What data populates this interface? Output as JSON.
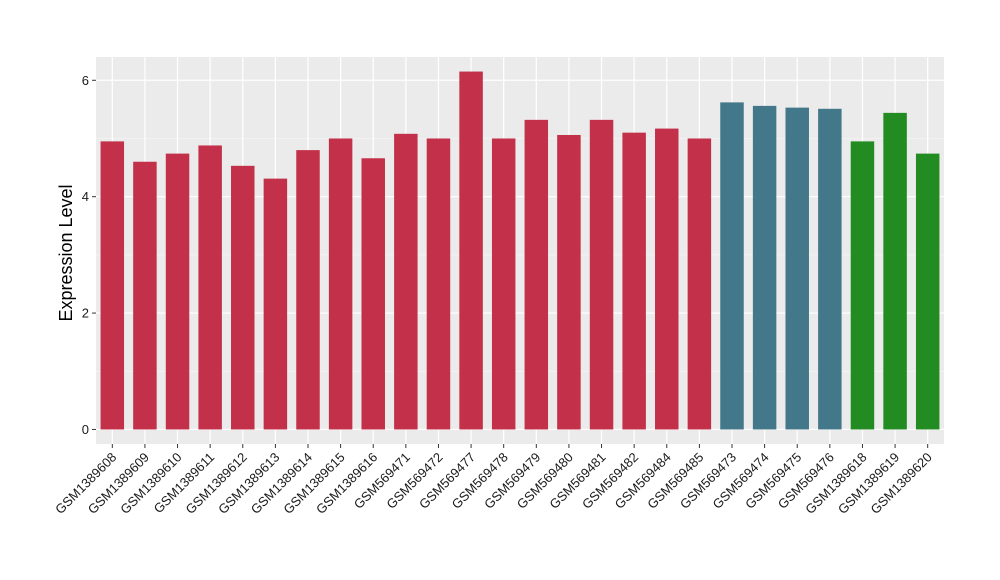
{
  "chart_data": {
    "type": "bar",
    "title": "",
    "xlabel": "",
    "ylabel": "Expression Level",
    "ylim": [
      -0.25,
      6.4
    ],
    "yticks": [
      0,
      2,
      4,
      6
    ],
    "grid": true,
    "legend": "none",
    "categories": [
      "GSM1389608",
      "GSM1389609",
      "GSM1389610",
      "GSM1389611",
      "GSM1389612",
      "GSM1389613",
      "GSM1389614",
      "GSM1389615",
      "GSM1389616",
      "GSM569471",
      "GSM569472",
      "GSM569477",
      "GSM569478",
      "GSM569479",
      "GSM569480",
      "GSM569481",
      "GSM569482",
      "GSM569484",
      "GSM569485",
      "GSM569473",
      "GSM569474",
      "GSM569475",
      "GSM569476",
      "GSM1389618",
      "GSM1389619",
      "GSM1389620"
    ],
    "values": [
      4.95,
      4.6,
      4.74,
      4.88,
      4.53,
      4.31,
      4.8,
      5.0,
      4.66,
      5.08,
      5.0,
      6.15,
      5.0,
      5.32,
      5.06,
      5.32,
      5.1,
      5.17,
      5.0,
      5.62,
      5.56,
      5.53,
      5.51,
      4.95,
      5.44,
      4.74
    ],
    "groups": [
      0,
      0,
      0,
      0,
      0,
      0,
      0,
      0,
      0,
      0,
      0,
      0,
      0,
      0,
      0,
      0,
      0,
      0,
      0,
      1,
      1,
      1,
      1,
      2,
      2,
      2
    ],
    "colors": {
      "group_colors": [
        "#c3304a",
        "#427889",
        "#228b22"
      ],
      "panel_background": "#ebebeb",
      "grid_major": "#ffffff",
      "grid_minor": "#f5f5f5",
      "tick_color": "#333333"
    }
  }
}
